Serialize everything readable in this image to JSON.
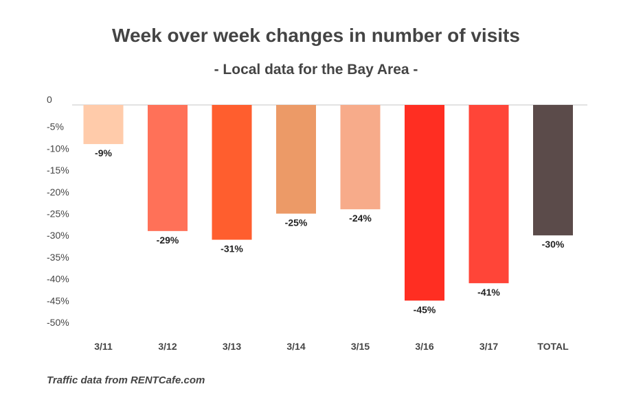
{
  "chart_data": {
    "type": "bar",
    "title": "Week over week changes in number of visits",
    "subtitle": "- Local data for the Bay Area -",
    "categories": [
      "3/11",
      "3/12",
      "3/13",
      "3/14",
      "3/15",
      "3/16",
      "3/17",
      "TOTAL"
    ],
    "values": [
      -9,
      -29,
      -31,
      -25,
      -24,
      -45,
      -41,
      -30
    ],
    "data_labels": [
      "-9%",
      "-29%",
      "-31%",
      "-25%",
      "-24%",
      "-45%",
      "-41%",
      "-30%"
    ],
    "colors": [
      "#FFCBAA",
      "#FF7158",
      "#FF5E2E",
      "#EC9A67",
      "#F7AB8A",
      "#FF2E22",
      "#FF4538",
      "#5B4B4A"
    ],
    "y_ticks": [
      0,
      -5,
      -10,
      -15,
      -20,
      -25,
      -30,
      -35,
      -40,
      -45,
      -50
    ],
    "y_tick_labels": [
      "0",
      "-5%",
      "-10%",
      "-15%",
      "-20%",
      "-25%",
      "-30%",
      "-35%",
      "-40%",
      "-45%",
      "-50%"
    ],
    "ylim": [
      -50,
      0
    ],
    "xlabel": "",
    "ylabel": "",
    "grid": false,
    "legend": "none",
    "source_note": "Traffic data from RENTCafe.com"
  }
}
